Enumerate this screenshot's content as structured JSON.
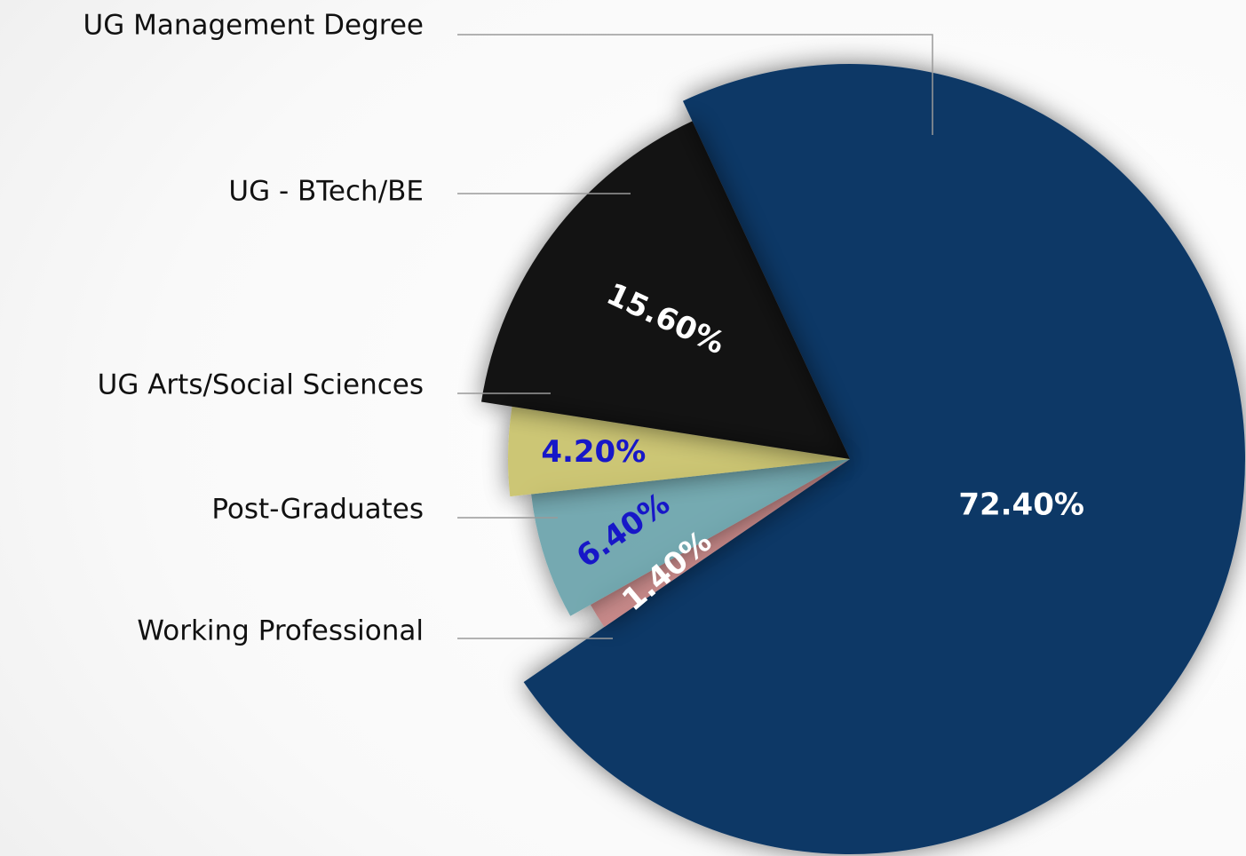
{
  "chart_data": {
    "type": "pie",
    "categories": [
      "UG Management Degree",
      "Working Professional",
      "Post-Graduates",
      "UG Arts/Social Sciences",
      "UG - BTech/BE"
    ],
    "values": [
      72.4,
      1.4,
      6.4,
      4.2,
      15.6
    ],
    "value_labels": [
      "72.40%",
      "1.40%",
      "6.40%",
      "4.20%",
      "15.60%"
    ],
    "colors": [
      "#0b3766",
      "#c98585",
      "#6aa3ab",
      "#c9c26a",
      "#000000"
    ],
    "label_colors": [
      "#ffffff",
      "#ffffff",
      "#1717c8",
      "#1717c8",
      "#ffffff"
    ]
  }
}
